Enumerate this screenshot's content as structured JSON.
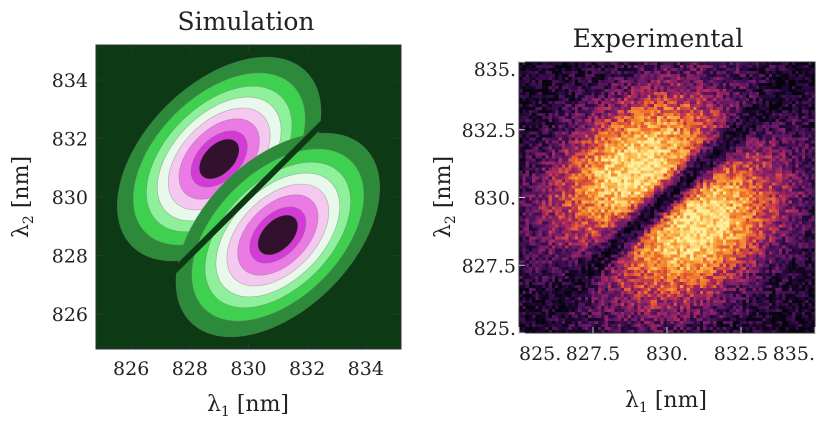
{
  "chart_data": [
    {
      "type": "heatmap",
      "style": "contour",
      "title": "Simulation",
      "xlabel": {
        "symbol": "λ",
        "sub": "1",
        "unit": " [nm]"
      },
      "ylabel": {
        "symbol": "λ",
        "sub": "2",
        "unit": " [nm]"
      },
      "xlim": [
        824.8,
        835.2
      ],
      "ylim": [
        824.8,
        835.2
      ],
      "xticks": [
        826,
        828,
        830,
        832,
        834
      ],
      "yticks": [
        826,
        828,
        830,
        832,
        834
      ],
      "xtick_labels": [
        "826",
        "828",
        "830",
        "832",
        "834"
      ],
      "ytick_labels": [
        "826",
        "828",
        "830",
        "832",
        "834"
      ],
      "lobes": [
        {
          "cx": 829.0,
          "cy": 831.3
        },
        {
          "cx": 831.0,
          "cy": 828.7
        }
      ],
      "contour_levels": [
        0.92,
        0.78,
        0.6,
        0.45,
        0.3,
        0.18,
        0.08
      ],
      "colors": {
        "background": "#0d3a14",
        "levels": [
          "#2d8a3a",
          "#40d050",
          "#8ef09a",
          "#e8f8ea",
          "#f5c8f0",
          "#ec7ae4",
          "#d43ad6",
          "#33102e"
        ]
      }
    },
    {
      "type": "heatmap",
      "style": "pixels",
      "title": "Experimental",
      "xlabel": {
        "symbol": "λ",
        "sub": "1",
        "unit": " [nm]"
      },
      "ylabel": {
        "symbol": "λ",
        "sub": "2",
        "unit": " [nm]"
      },
      "xlim": [
        825,
        835
      ],
      "ylim": [
        825,
        835
      ],
      "xticks": [
        825,
        827.5,
        830,
        832.5,
        835
      ],
      "yticks": [
        825,
        827.5,
        830,
        832.5,
        835
      ],
      "xtick_labels": [
        "825.",
        "827.5",
        "830.",
        "832.5",
        "835."
      ],
      "ytick_labels": [
        "825.",
        "827.5",
        "830.",
        "832.5",
        "835."
      ],
      "lobes": [
        {
          "cx": 828.8,
          "cy": 831.3
        },
        {
          "cx": 831.2,
          "cy": 828.7
        }
      ],
      "colors": {
        "scale": [
          "#06030f",
          "#2e0a45",
          "#6b1b6b",
          "#b02a5a",
          "#ee6a2a",
          "#fbb040",
          "#fff0a0"
        ]
      }
    }
  ]
}
